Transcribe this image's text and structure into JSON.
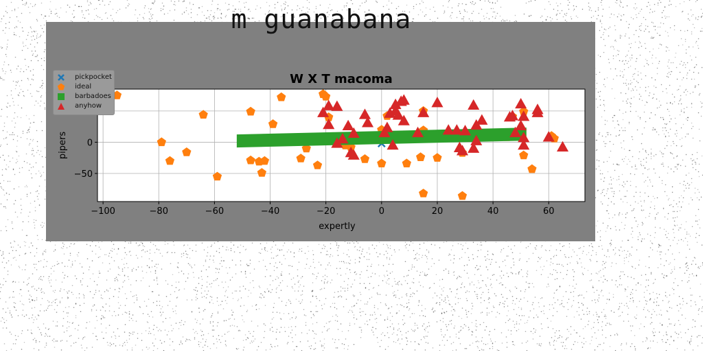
{
  "suptitle": "m guanabana",
  "colors": {
    "figure_bg": "#808080",
    "axes_bg": "#ffffff",
    "grid": "#b0b0b0",
    "pickpocket": "#1f77b4",
    "ideal": "#ff7f0e",
    "barbadoes": "#2ca02c",
    "anyhow": "#d62728"
  },
  "chart_data": {
    "type": "scatter",
    "title": "W X T macoma",
    "xlabel": "expertly",
    "ylabel": "pipers",
    "xlim": [
      -102,
      73
    ],
    "ylim": [
      -95,
      85
    ],
    "xticks": [
      -100,
      -80,
      -60,
      -40,
      -20,
      0,
      20,
      40,
      60
    ],
    "xtick_labels": [
      "−100",
      "−80",
      "−60",
      "−40",
      "−20",
      "0",
      "20",
      "40",
      "60"
    ],
    "yticks": [
      -50,
      0,
      50
    ],
    "ytick_labels": [
      "−50",
      "0",
      "50"
    ],
    "grid": true,
    "legend_position": "upper-left",
    "series": [
      {
        "name": "pickpocket",
        "marker": "x",
        "points": [
          [
            0,
            -2
          ]
        ]
      },
      {
        "name": "ideal",
        "marker": "pentagon",
        "points": [
          [
            -95,
            75
          ],
          [
            -79,
            0
          ],
          [
            -76,
            -30
          ],
          [
            -70,
            -16
          ],
          [
            -64,
            44
          ],
          [
            -59,
            -55
          ],
          [
            -47,
            49
          ],
          [
            -47,
            -29
          ],
          [
            -44,
            -31
          ],
          [
            -43,
            -49
          ],
          [
            -42,
            -30
          ],
          [
            -39,
            29
          ],
          [
            -36,
            72
          ],
          [
            -29,
            -26
          ],
          [
            -27,
            -10
          ],
          [
            -23,
            -37
          ],
          [
            -21,
            77
          ],
          [
            -20,
            73
          ],
          [
            -19,
            40
          ],
          [
            -13,
            -5
          ],
          [
            -11,
            -8
          ],
          [
            -6,
            -27
          ],
          [
            0,
            20
          ],
          [
            0,
            -34
          ],
          [
            2,
            42
          ],
          [
            9,
            -34
          ],
          [
            14,
            -24
          ],
          [
            15,
            50
          ],
          [
            15,
            19
          ],
          [
            15,
            -82
          ],
          [
            20,
            -25
          ],
          [
            29,
            -17
          ],
          [
            29,
            -86
          ],
          [
            33,
            10
          ],
          [
            45,
            8
          ],
          [
            47,
            41
          ],
          [
            51,
            -21
          ],
          [
            51,
            49
          ],
          [
            54,
            -43
          ],
          [
            61,
            10
          ],
          [
            62,
            6
          ]
        ]
      },
      {
        "name": "barbadoes",
        "marker": "band",
        "start": [
          -52,
          2
        ],
        "end": [
          52,
          13
        ],
        "thickness": 19
      },
      {
        "name": "anyhow",
        "marker": "triangle",
        "points": [
          [
            -21,
            47
          ],
          [
            -19,
            58
          ],
          [
            -19,
            28
          ],
          [
            -16,
            57
          ],
          [
            -16,
            -2
          ],
          [
            -14,
            5
          ],
          [
            -12,
            26
          ],
          [
            -10,
            14
          ],
          [
            -11,
            -17
          ],
          [
            -10,
            -21
          ],
          [
            -6,
            44
          ],
          [
            -5,
            31
          ],
          [
            1,
            15
          ],
          [
            2,
            23
          ],
          [
            3,
            46
          ],
          [
            4,
            -5
          ],
          [
            5,
            50
          ],
          [
            5,
            60
          ],
          [
            6,
            43
          ],
          [
            7,
            65
          ],
          [
            8,
            67
          ],
          [
            8,
            34
          ],
          [
            13,
            15
          ],
          [
            15,
            47
          ],
          [
            20,
            63
          ],
          [
            24,
            19
          ],
          [
            27,
            19
          ],
          [
            28,
            -9
          ],
          [
            29,
            -14
          ],
          [
            30,
            18
          ],
          [
            33,
            59
          ],
          [
            33,
            -10
          ],
          [
            34,
            27
          ],
          [
            34,
            2
          ],
          [
            36,
            35
          ],
          [
            46,
            40
          ],
          [
            47,
            42
          ],
          [
            48,
            15
          ],
          [
            50,
            61
          ],
          [
            50,
            26
          ],
          [
            51,
            41
          ],
          [
            51,
            7
          ],
          [
            51,
            -5
          ],
          [
            56,
            52
          ],
          [
            56,
            47
          ],
          [
            60,
            8
          ],
          [
            65,
            -8
          ]
        ]
      }
    ]
  }
}
